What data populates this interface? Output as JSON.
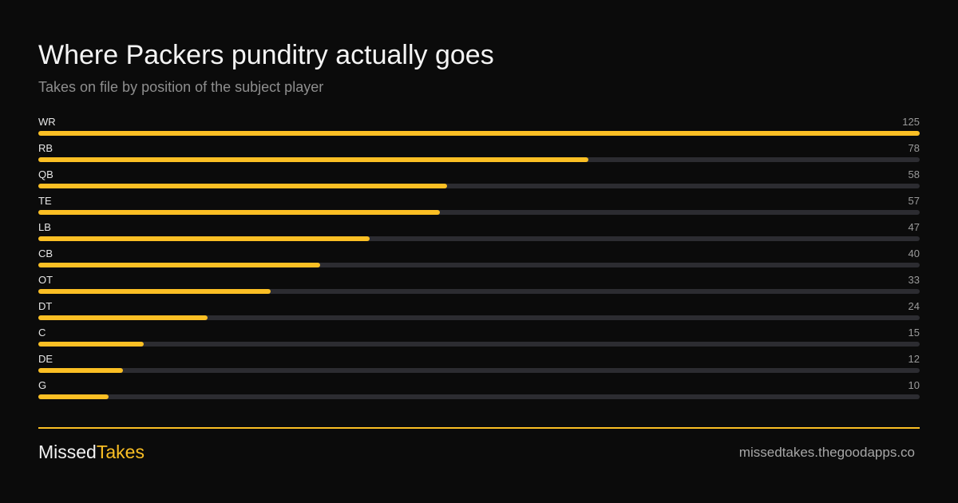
{
  "header": {
    "title": "Where Packers punditry actually goes",
    "subtitle": "Takes on file by position of the subject player"
  },
  "chart_data": {
    "type": "bar",
    "orientation": "horizontal",
    "title": "Where Packers punditry actually goes",
    "subtitle": "Takes on file by position of the subject player",
    "categories": [
      "WR",
      "RB",
      "QB",
      "TE",
      "LB",
      "CB",
      "OT",
      "DT",
      "C",
      "DE",
      "G"
    ],
    "values": [
      125,
      78,
      58,
      57,
      47,
      40,
      33,
      24,
      15,
      12,
      10
    ],
    "xlim": [
      0,
      125
    ],
    "grid": false,
    "data_labels": true
  },
  "footer": {
    "brand_part1": "Missed",
    "brand_part2": "Takes",
    "url": "missedtakes.thegoodapps.co"
  },
  "colors": {
    "accent": "#fbbf24",
    "track": "#2c2c31",
    "background": "#0b0b0b"
  }
}
